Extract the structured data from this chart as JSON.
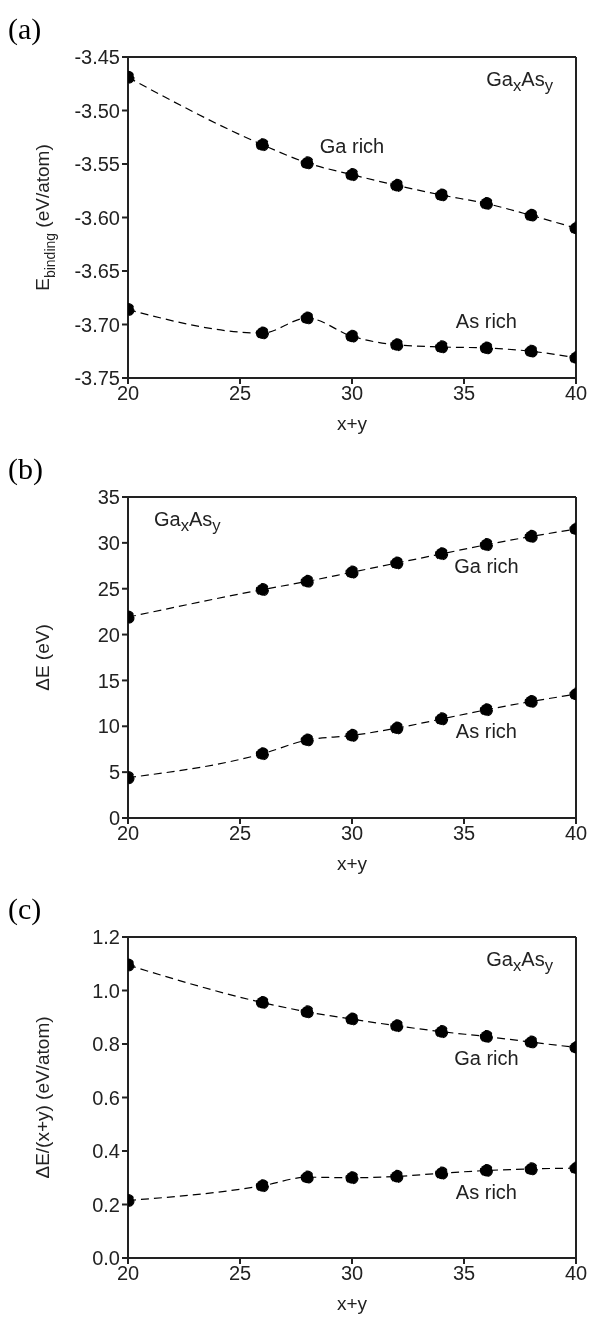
{
  "chart_data": [
    {
      "type": "line",
      "title": "(a)",
      "xlabel": "x+y",
      "ylabel": "E$_{binding}$ (eV/atom)",
      "annotations": [
        "Ga$_{x}$As$_{y}$"
      ],
      "x": [
        20,
        26,
        28,
        30,
        32,
        34,
        36,
        38,
        40
      ],
      "xlim": [
        20,
        40
      ],
      "xticks": [
        20,
        25,
        30,
        35,
        40
      ],
      "ylim": [
        -3.75,
        -3.45
      ],
      "yticks": [
        {
          "value": -3.75,
          "label": "-3.75"
        },
        {
          "value": -3.7,
          "label": "-3.70"
        },
        {
          "value": -3.65,
          "label": "-3.65"
        },
        {
          "value": -3.6,
          "label": "-3.60"
        },
        {
          "value": -3.55,
          "label": "-3.55"
        },
        {
          "value": -3.5,
          "label": "-3.50"
        },
        {
          "value": -3.45,
          "label": "-3.45"
        }
      ],
      "marker": "circle",
      "line_style": "dashed",
      "series": [
        {
          "name": "Ga rich",
          "color": "#000000",
          "values": [
            -3.469,
            -3.532,
            -3.549,
            -3.56,
            -3.57,
            -3.579,
            -3.587,
            -3.598,
            -3.61
          ]
        },
        {
          "name": "As rich",
          "color": "#000000",
          "values": [
            -3.686,
            -3.708,
            -3.694,
            -3.711,
            -3.719,
            -3.721,
            -3.722,
            -3.725,
            -3.731
          ]
        }
      ]
    },
    {
      "type": "line",
      "title": "(b)",
      "xlabel": "x+y",
      "ylabel": "ΔE (eV)",
      "annotations": [
        "Ga$_{x}$As$_{y}$"
      ],
      "x": [
        20,
        26,
        28,
        30,
        32,
        34,
        36,
        38,
        40
      ],
      "xlim": [
        20,
        40
      ],
      "xticks": [
        20,
        25,
        30,
        35,
        40
      ],
      "ylim": [
        0,
        35
      ],
      "yticks": [
        0,
        5,
        10,
        15,
        20,
        25,
        30,
        35
      ],
      "marker": "circle",
      "line_style": "dashed",
      "series": [
        {
          "name": "Ga rich",
          "color": "#000000",
          "values": [
            21.9,
            24.9,
            25.8,
            26.8,
            27.8,
            28.8,
            29.8,
            30.7,
            31.5
          ]
        },
        {
          "name": "As rich",
          "color": "#000000",
          "values": [
            4.4,
            7.0,
            8.5,
            9.0,
            9.8,
            10.8,
            11.8,
            12.7,
            13.5
          ]
        }
      ]
    },
    {
      "type": "line",
      "title": "(c)",
      "xlabel": "x+y",
      "ylabel": "ΔE/(x+y) (eV/atom)",
      "annotations": [
        "Ga$_{x}$As$_{y}$"
      ],
      "x": [
        20,
        26,
        28,
        30,
        32,
        34,
        36,
        38,
        40
      ],
      "xlim": [
        20,
        40
      ],
      "xticks": [
        20,
        25,
        30,
        35,
        40
      ],
      "ylim": [
        0,
        1.2
      ],
      "yticks": [
        {
          "value": 0,
          "label": "0.0"
        },
        {
          "value": 0.2,
          "label": "0.2"
        },
        {
          "value": 0.4,
          "label": "0.4"
        },
        {
          "value": 0.6,
          "label": "0.6"
        },
        {
          "value": 0.8,
          "label": "0.8"
        },
        {
          "value": 1,
          "label": "1.0"
        },
        {
          "value": 1.2,
          "label": "1.2"
        }
      ],
      "marker": "circle",
      "line_style": "dashed",
      "series": [
        {
          "name": "Ga rich",
          "color": "#000000",
          "values": [
            1.095,
            0.955,
            0.92,
            0.893,
            0.868,
            0.846,
            0.828,
            0.807,
            0.787
          ]
        },
        {
          "name": "As rich",
          "color": "#000000",
          "values": [
            0.215,
            0.27,
            0.302,
            0.3,
            0.305,
            0.317,
            0.327,
            0.333,
            0.336
          ]
        }
      ]
    }
  ]
}
